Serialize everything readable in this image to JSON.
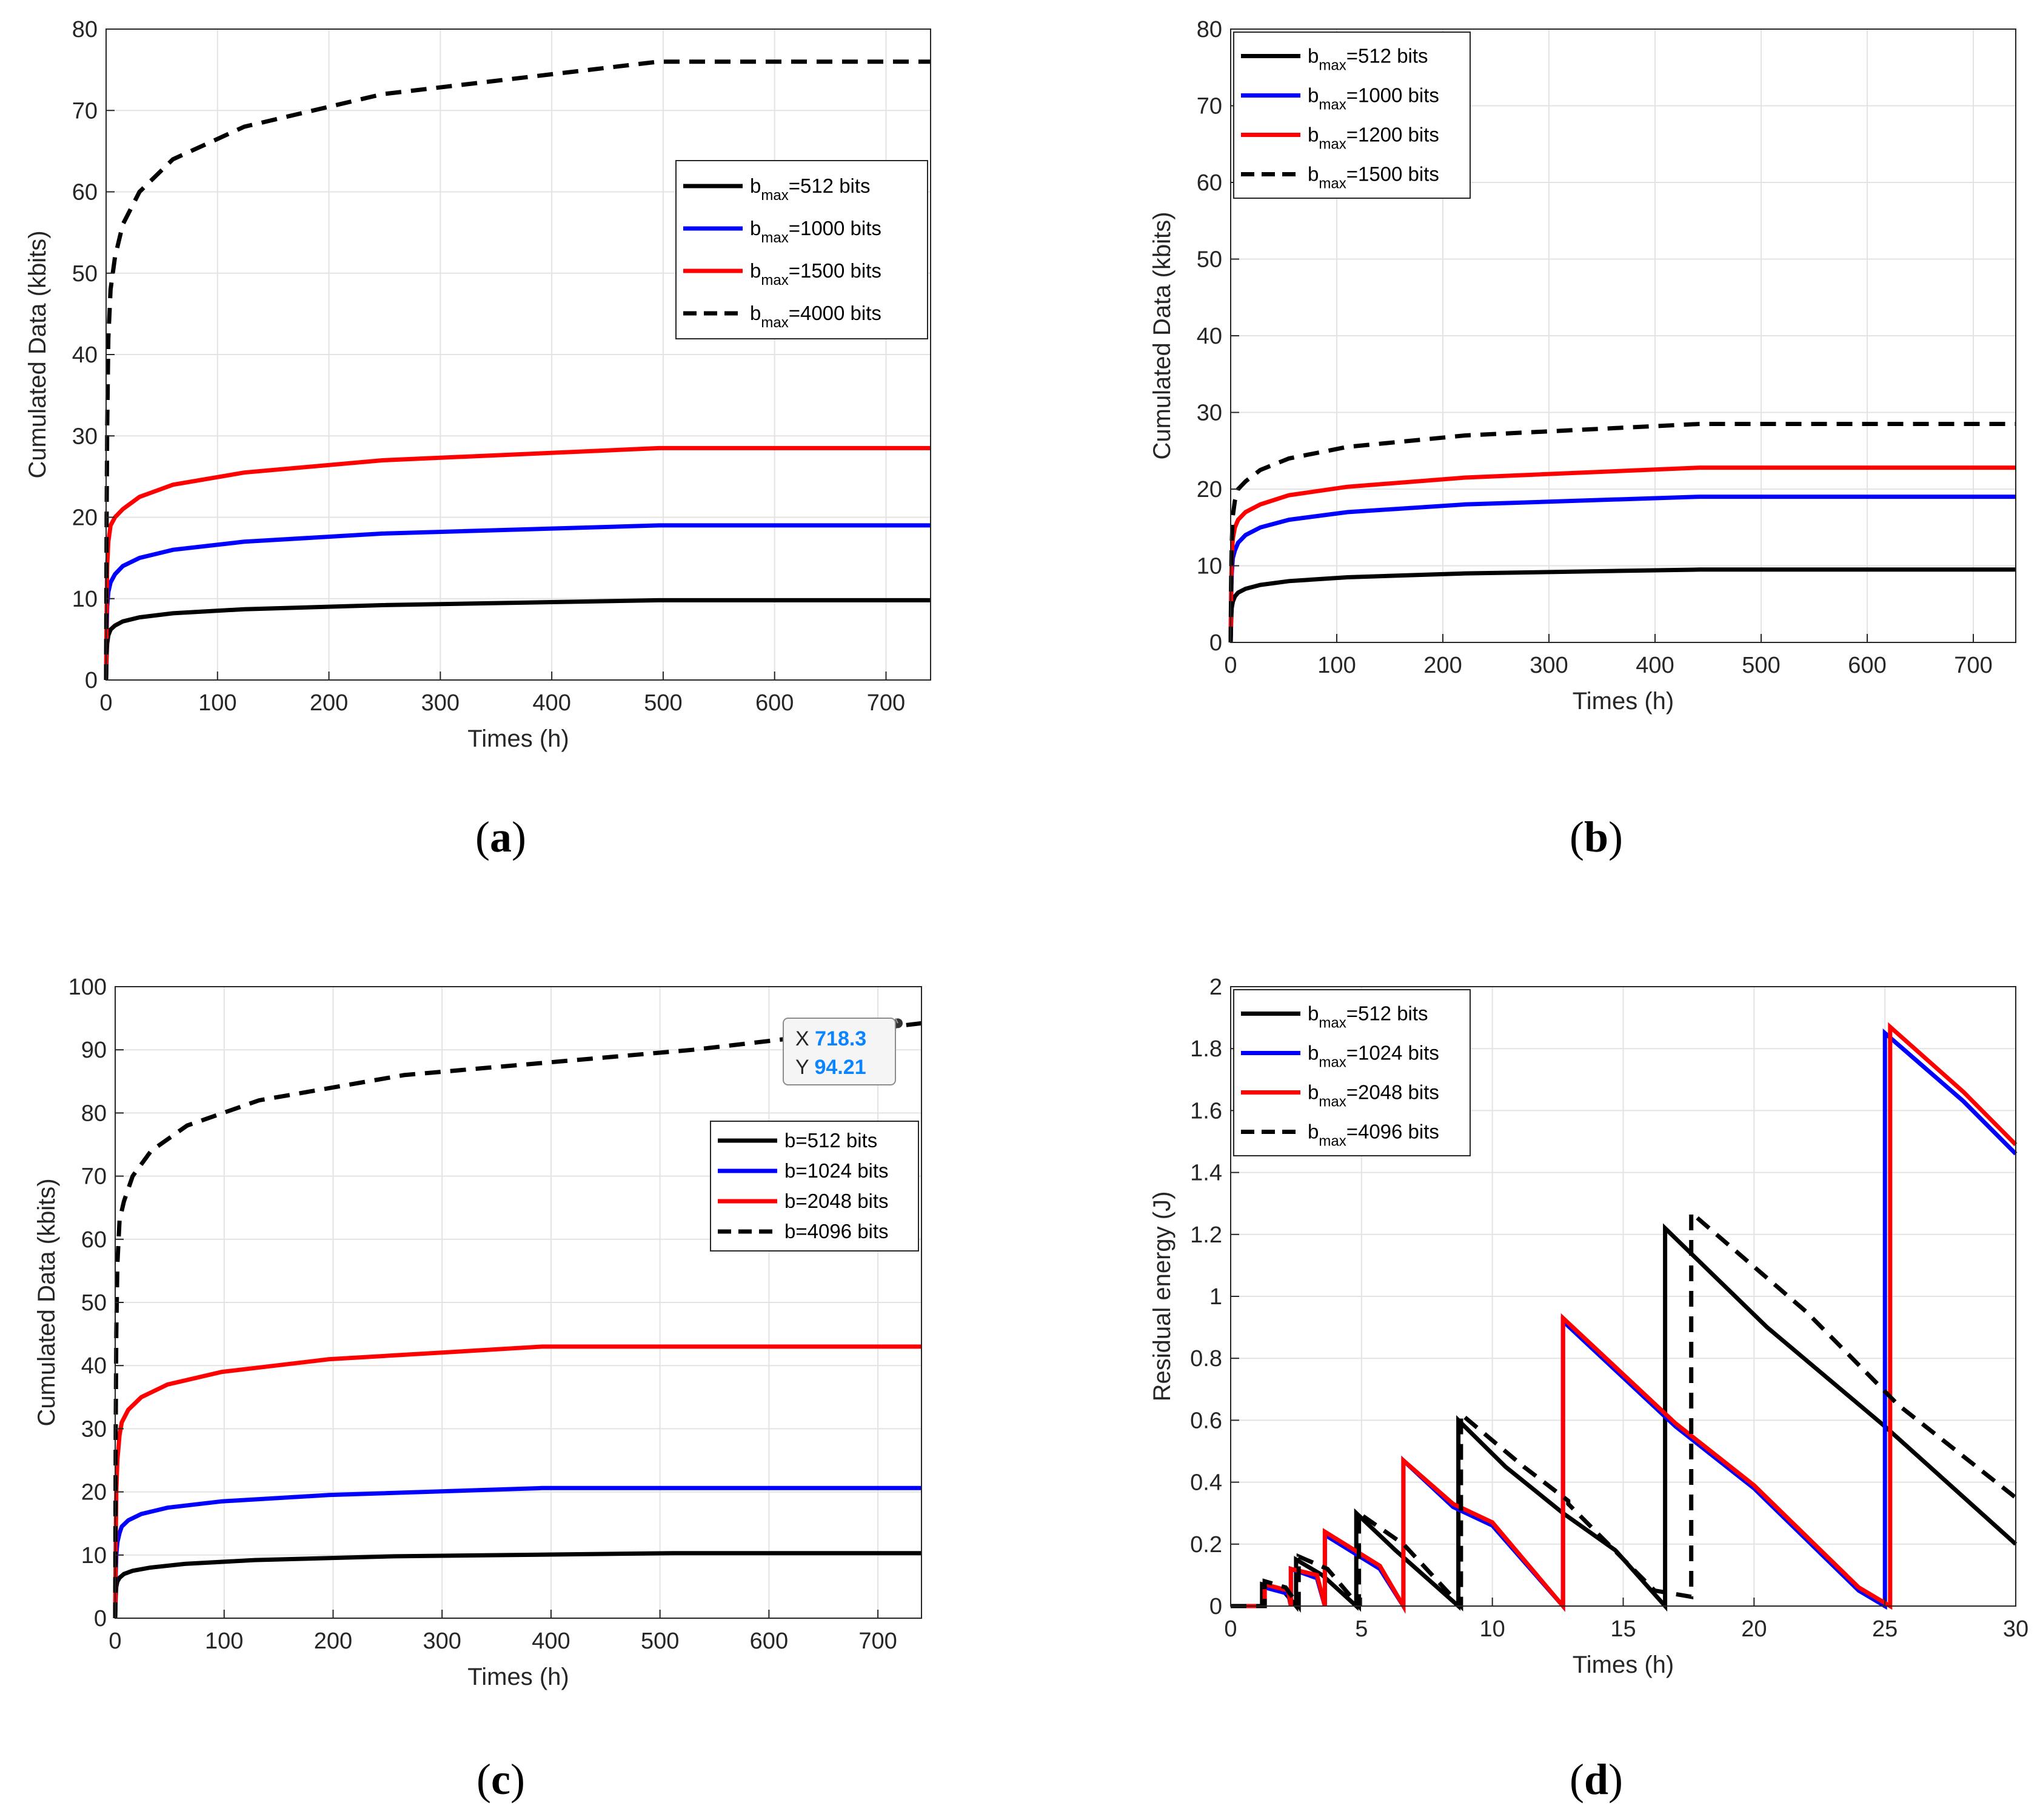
{
  "colors": {
    "black": "#000000",
    "blue": "#0000ff",
    "red": "#ff0000",
    "grid": "#e3e3e3",
    "axis": "#262626"
  },
  "captions": [
    {
      "open": "(",
      "letter": "a",
      "close": ")"
    },
    {
      "open": "(",
      "letter": "b",
      "close": ")"
    },
    {
      "open": "(",
      "letter": "c",
      "close": ")"
    },
    {
      "open": "(",
      "letter": "d",
      "close": ")"
    }
  ],
  "chart_data": [
    {
      "panel": "a",
      "type": "line",
      "xlabel": "Times (h)",
      "ylabel": "Cumulated Data (kbits)",
      "xlim": [
        0,
        740
      ],
      "ylim": [
        0,
        80
      ],
      "xticks": [
        0,
        100,
        200,
        300,
        400,
        500,
        600,
        700
      ],
      "yticks": [
        0,
        10,
        20,
        30,
        40,
        50,
        60,
        70,
        80
      ],
      "grid": true,
      "legend": "middle-right",
      "series": [
        {
          "name": "b",
          "sub": "max",
          "suffix": "=512 bits",
          "color": "#000000",
          "dashed": false,
          "x": [
            0,
            0.5,
            1,
            2,
            4,
            8,
            15,
            30,
            60,
            124,
            248,
            496,
            740
          ],
          "y": [
            0,
            3,
            4.5,
            5.5,
            6.2,
            6.7,
            7.2,
            7.7,
            8.2,
            8.7,
            9.2,
            9.8,
            9.8
          ]
        },
        {
          "name": "b",
          "sub": "max",
          "suffix": "=1000 bits",
          "color": "#0000ff",
          "dashed": false,
          "x": [
            0,
            0.5,
            1,
            2,
            4,
            8,
            15,
            30,
            60,
            124,
            248,
            496,
            740
          ],
          "y": [
            0,
            6,
            9,
            10.8,
            12,
            13,
            14,
            15,
            16,
            17,
            18,
            19,
            19
          ]
        },
        {
          "name": "b",
          "sub": "max",
          "suffix": "=1500 bits",
          "color": "#ff0000",
          "dashed": false,
          "x": [
            0,
            0.5,
            1,
            2,
            4,
            8,
            15,
            30,
            60,
            124,
            248,
            496,
            740
          ],
          "y": [
            0,
            8,
            14,
            17,
            19,
            20,
            21,
            22.5,
            24,
            25.5,
            27,
            28.5,
            28.5
          ]
        },
        {
          "name": "b",
          "sub": "max",
          "suffix": "=4000 bits",
          "color": "#000000",
          "dashed": true,
          "x": [
            0,
            0.5,
            1,
            2,
            4,
            8,
            15,
            30,
            60,
            124,
            248,
            496,
            740
          ],
          "y": [
            0,
            20,
            31,
            42,
            48,
            52,
            56,
            60,
            64,
            68,
            72,
            76,
            76
          ]
        }
      ]
    },
    {
      "panel": "b",
      "type": "line",
      "xlabel": "Times (h)",
      "ylabel": "Cumulated Data (kbits)",
      "xlim": [
        0,
        740
      ],
      "ylim": [
        0,
        80
      ],
      "xticks": [
        0,
        100,
        200,
        300,
        400,
        500,
        600,
        700
      ],
      "yticks": [
        0,
        10,
        20,
        30,
        40,
        50,
        60,
        70,
        80
      ],
      "grid": true,
      "legend": "top-left",
      "series": [
        {
          "name": "b",
          "sub": "max",
          "suffix": "=512 bits",
          "color": "#000000",
          "dashed": false,
          "x": [
            0,
            0.5,
            1,
            2,
            4,
            7,
            14,
            28,
            55,
            110,
            221,
            442,
            740
          ],
          "y": [
            0,
            3,
            4.5,
            5.3,
            6,
            6.5,
            7,
            7.5,
            8,
            8.5,
            9,
            9.5,
            9.5
          ]
        },
        {
          "name": "b",
          "sub": "max",
          "suffix": "=1000 bits",
          "color": "#0000ff",
          "dashed": false,
          "x": [
            0,
            0.5,
            1,
            2,
            4,
            7,
            14,
            28,
            55,
            110,
            221,
            442,
            740
          ],
          "y": [
            0,
            6,
            9,
            11,
            12,
            13,
            14,
            15,
            16,
            17,
            18,
            19,
            19
          ]
        },
        {
          "name": "b",
          "sub": "max",
          "suffix": "=1200 bits",
          "color": "#ff0000",
          "dashed": false,
          "x": [
            0,
            0.5,
            1,
            2,
            4,
            7,
            14,
            28,
            55,
            110,
            221,
            442,
            740
          ],
          "y": [
            0,
            7.5,
            11,
            13.5,
            15,
            16,
            17,
            18,
            19.2,
            20.3,
            21.5,
            22.8,
            22.8
          ]
        },
        {
          "name": "b",
          "sub": "max",
          "suffix": "=1500 bits",
          "color": "#000000",
          "dashed": true,
          "x": [
            0,
            0.5,
            1,
            2,
            4,
            7,
            14,
            28,
            55,
            110,
            221,
            442,
            740
          ],
          "y": [
            0,
            9,
            13,
            16.5,
            18.5,
            20,
            21,
            22.5,
            24,
            25.5,
            27,
            28.5,
            28.5
          ]
        }
      ]
    },
    {
      "panel": "c",
      "type": "line",
      "xlabel": "Times (h)",
      "ylabel": "Cumulated Data (kbits)",
      "xlim": [
        0,
        740
      ],
      "ylim": [
        0,
        100
      ],
      "xticks": [
        0,
        100,
        200,
        300,
        400,
        500,
        600,
        700
      ],
      "yticks": [
        0,
        10,
        20,
        30,
        40,
        50,
        60,
        70,
        80,
        90,
        100
      ],
      "grid": true,
      "legend": "middle-right",
      "datatip": {
        "x_label": "X",
        "x_value": "718.3",
        "y_label": "Y",
        "y_value": "94.21",
        "x": 718.3,
        "y": 94.21
      },
      "series": [
        {
          "name": "b=512 bits",
          "sub": "",
          "suffix": "",
          "color": "#000000",
          "dashed": false,
          "x": [
            0,
            0.5,
            1,
            2,
            4,
            8,
            16,
            32,
            64,
            128,
            256,
            512,
            740
          ],
          "y": [
            0,
            3.5,
            5,
            5.8,
            6.4,
            7,
            7.5,
            8,
            8.6,
            9.2,
            9.8,
            10.3,
            10.3
          ]
        },
        {
          "name": "b=1024 bits",
          "sub": "",
          "suffix": "",
          "color": "#0000ff",
          "dashed": false,
          "x": [
            0,
            0.5,
            1,
            2,
            4,
            6,
            12,
            24,
            48,
            98,
            196,
            392,
            740
          ],
          "y": [
            0,
            7,
            10,
            12,
            13.5,
            14.5,
            15.5,
            16.5,
            17.5,
            18.5,
            19.5,
            20.6,
            20.6
          ]
        },
        {
          "name": "b=2048 bits",
          "sub": "",
          "suffix": "",
          "color": "#ff0000",
          "dashed": false,
          "x": [
            0,
            0.5,
            1,
            2,
            4,
            6,
            12,
            24,
            48,
            98,
            196,
            392,
            740
          ],
          "y": [
            0,
            12,
            20,
            25,
            29,
            31,
            33,
            35,
            37,
            39,
            41,
            43,
            43
          ]
        },
        {
          "name": "b=4096 bits",
          "sub": "",
          "suffix": "",
          "color": "#000000",
          "dashed": true,
          "x": [
            0,
            0.5,
            1,
            2,
            4,
            8,
            16,
            33,
            66,
            132,
            265,
            530,
            740
          ],
          "y": [
            0,
            30,
            45,
            56,
            63,
            66,
            70,
            74,
            78,
            82,
            86,
            90,
            94.2
          ]
        }
      ]
    },
    {
      "panel": "d",
      "type": "line",
      "xlabel": "Times (h)",
      "ylabel": "Residual energy (J)",
      "xlim": [
        0,
        30
      ],
      "ylim": [
        0,
        2
      ],
      "xticks": [
        0,
        5,
        10,
        15,
        20,
        25,
        30
      ],
      "yticks": [
        0,
        0.2,
        0.4,
        0.6,
        0.8,
        1,
        1.2,
        1.4,
        1.6,
        1.8,
        2
      ],
      "grid": true,
      "legend": "top-left",
      "series": [
        {
          "name": "b",
          "sub": "max",
          "suffix": "=512 bits",
          "color": "#000000",
          "dashed": false,
          "x": [
            0,
            1.2,
            1.2,
            2.0,
            2.5,
            2.5,
            3.5,
            4.8,
            4.8,
            6.3,
            8.7,
            8.7,
            10.5,
            12.7,
            12.7,
            14.7,
            16.6,
            16.6,
            20.5,
            25,
            30
          ],
          "y": [
            0,
            0,
            0.07,
            0.05,
            0,
            0.15,
            0.1,
            0,
            0.3,
            0.18,
            0,
            0.6,
            0.45,
            0.3,
            0.3,
            0.18,
            0,
            1.22,
            0.9,
            0.58,
            0.2
          ]
        },
        {
          "name": "b",
          "sub": "max",
          "suffix": "=1024 bits",
          "color": "#0000ff",
          "dashed": false,
          "x": [
            0,
            1.3,
            1.3,
            2.2,
            2.3,
            2.3,
            3.3,
            3.6,
            3.6,
            5.7,
            6.6,
            6.6,
            8.5,
            10,
            12.7,
            12.7,
            17,
            20,
            24,
            25,
            25,
            28,
            30
          ],
          "y": [
            0,
            0,
            0.06,
            0.04,
            0,
            0.12,
            0.09,
            0,
            0.23,
            0.12,
            0,
            0.47,
            0.32,
            0.26,
            0,
            0.92,
            0.58,
            0.38,
            0.05,
            0,
            1.85,
            1.63,
            1.46
          ]
        },
        {
          "name": "b",
          "sub": "max",
          "suffix": "=2048 bits",
          "color": "#ff0000",
          "dashed": false,
          "x": [
            0,
            1.3,
            1.3,
            2.2,
            2.3,
            2.3,
            3.3,
            3.6,
            3.6,
            5.7,
            6.6,
            6.6,
            8.5,
            10,
            12.7,
            12.7,
            17,
            20,
            24,
            25.2,
            25.2,
            28,
            30
          ],
          "y": [
            0,
            0,
            0.07,
            0.05,
            0,
            0.12,
            0.1,
            0,
            0.24,
            0.13,
            0,
            0.47,
            0.33,
            0.27,
            0,
            0.93,
            0.59,
            0.39,
            0.06,
            0,
            1.87,
            1.66,
            1.49
          ]
        },
        {
          "name": "b",
          "sub": "max",
          "suffix": "=4096 bits",
          "color": "#000000",
          "dashed": true,
          "x": [
            0,
            1.3,
            1.3,
            2.1,
            2.6,
            2.6,
            3.7,
            4.9,
            4.9,
            6.6,
            8.8,
            8.8,
            11.2,
            12.9,
            12.9,
            16.2,
            17.6,
            17.6,
            22,
            25.5,
            30
          ],
          "y": [
            0,
            0,
            0.08,
            0.06,
            0,
            0.16,
            0.12,
            0,
            0.3,
            0.2,
            0,
            0.62,
            0.45,
            0.34,
            0.33,
            0.05,
            0.03,
            1.27,
            0.95,
            0.65,
            0.35
          ]
        }
      ]
    }
  ]
}
